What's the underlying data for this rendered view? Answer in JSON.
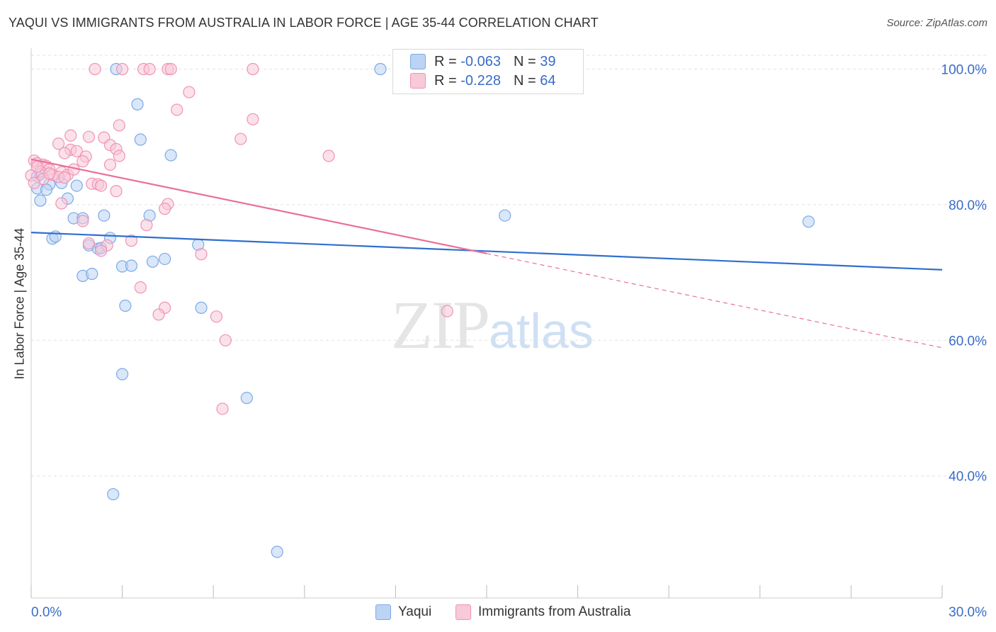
{
  "title": "YAQUI VS IMMIGRANTS FROM AUSTRALIA IN LABOR FORCE | AGE 35-44 CORRELATION CHART",
  "source": "Source: ZipAtlas.com",
  "legend": {
    "rows": [
      {
        "r_label": "R =",
        "r_value": "-0.063",
        "n_label": "N =",
        "n_value": "39"
      },
      {
        "r_label": "R =",
        "r_value": "-0.228",
        "n_label": "N =",
        "n_value": "64"
      }
    ]
  },
  "bottom_legend": {
    "series1": "Yaqui",
    "series2": "Immigrants from Australia"
  },
  "watermark": {
    "zip": "ZIP",
    "atlas": "atlas"
  },
  "colors": {
    "blue": "#7aaae8",
    "blue_fill": "#bcd3f3",
    "blue_line": "#2f6fcf",
    "pink": "#f093b4",
    "pink_fill": "#f8c9d8",
    "pink_line": "#e8709a",
    "grid": "#e2e2e2",
    "tick_label": "#3a6cc8"
  },
  "chart_data": {
    "type": "scatter",
    "title": "YAQUI VS IMMIGRANTS FROM AUSTRALIA IN LABOR FORCE | AGE 35-44 CORRELATION CHART",
    "xlabel": "",
    "ylabel": "In Labor Force | Age 35-44",
    "xlim": [
      0,
      30
    ],
    "ylim": [
      20,
      104
    ],
    "x_tick_labels": [
      {
        "value": 0,
        "label": "0.0%"
      },
      {
        "value": 30,
        "label": "30.0%"
      }
    ],
    "y_tick_labels": [
      {
        "value": 40,
        "label": "40.0%"
      },
      {
        "value": 60,
        "label": "60.0%"
      },
      {
        "value": 80,
        "label": "80.0%"
      },
      {
        "value": 100,
        "label": "100.0%"
      }
    ],
    "y_grid": [
      40,
      60,
      80,
      100
    ],
    "grid": true,
    "series": [
      {
        "name": "Yaqui",
        "color": "#7aaae8",
        "trend": {
          "x": [
            0,
            30
          ],
          "y": [
            75.9,
            70.4
          ]
        },
        "points": [
          [
            2.8,
            100
          ],
          [
            11.5,
            100
          ],
          [
            3.5,
            94.8
          ],
          [
            3.6,
            89.6
          ],
          [
            4.6,
            87.3
          ],
          [
            0.2,
            84.2
          ],
          [
            0.6,
            83.0
          ],
          [
            1.5,
            82.8
          ],
          [
            0.2,
            82.4
          ],
          [
            0.5,
            82.2
          ],
          [
            0.3,
            80.6
          ],
          [
            1.2,
            80.9
          ],
          [
            2.4,
            78.4
          ],
          [
            1.4,
            78.0
          ],
          [
            1.7,
            78.0
          ],
          [
            3.9,
            78.4
          ],
          [
            15.6,
            78.4
          ],
          [
            25.6,
            77.5
          ],
          [
            0.7,
            75.0
          ],
          [
            0.8,
            75.3
          ],
          [
            2.6,
            75.1
          ],
          [
            1.9,
            74.0
          ],
          [
            5.5,
            74.1
          ],
          [
            2.2,
            73.5
          ],
          [
            4.0,
            71.6
          ],
          [
            4.4,
            72.0
          ],
          [
            3.0,
            70.9
          ],
          [
            3.3,
            71.0
          ],
          [
            1.7,
            69.5
          ],
          [
            2.0,
            69.8
          ],
          [
            3.1,
            65.1
          ],
          [
            5.6,
            64.8
          ],
          [
            3.0,
            55.0
          ],
          [
            7.1,
            51.5
          ],
          [
            2.7,
            37.3
          ],
          [
            8.1,
            28.8
          ],
          [
            0.3,
            84.5
          ],
          [
            1.0,
            83.2
          ],
          [
            2.3,
            73.6
          ]
        ]
      },
      {
        "name": "Immigrants from Australia",
        "color": "#f093b4",
        "trend": {
          "x": [
            0,
            15
          ],
          "y": [
            86.7,
            72.8
          ]
        },
        "trend_dashed": {
          "x": [
            15,
            30
          ],
          "y": [
            72.8,
            58.9
          ]
        },
        "points": [
          [
            2.1,
            100
          ],
          [
            3.0,
            100
          ],
          [
            3.7,
            100
          ],
          [
            3.9,
            100
          ],
          [
            4.5,
            100
          ],
          [
            4.6,
            100
          ],
          [
            7.3,
            100
          ],
          [
            5.2,
            96.6
          ],
          [
            4.8,
            94.0
          ],
          [
            7.3,
            92.6
          ],
          [
            2.9,
            91.7
          ],
          [
            1.3,
            90.2
          ],
          [
            1.9,
            90.0
          ],
          [
            2.4,
            89.9
          ],
          [
            6.9,
            89.7
          ],
          [
            0.9,
            89.0
          ],
          [
            2.6,
            88.8
          ],
          [
            1.3,
            88.1
          ],
          [
            1.5,
            87.9
          ],
          [
            1.1,
            87.6
          ],
          [
            2.8,
            88.2
          ],
          [
            1.8,
            87.1
          ],
          [
            2.9,
            87.2
          ],
          [
            9.8,
            87.2
          ],
          [
            1.7,
            86.4
          ],
          [
            0.1,
            86.5
          ],
          [
            0.2,
            86.1
          ],
          [
            0.4,
            85.9
          ],
          [
            0.5,
            85.7
          ],
          [
            0.6,
            85.2
          ],
          [
            1.0,
            84.8
          ],
          [
            1.2,
            84.4
          ],
          [
            1.4,
            85.2
          ],
          [
            2.6,
            85.9
          ],
          [
            0.3,
            84.9
          ],
          [
            0.7,
            84.4
          ],
          [
            0.9,
            84.1
          ],
          [
            1.1,
            84.0
          ],
          [
            0.4,
            83.8
          ],
          [
            0.0,
            84.3
          ],
          [
            2.0,
            83.1
          ],
          [
            2.2,
            83.0
          ],
          [
            2.3,
            82.8
          ],
          [
            0.1,
            83.2
          ],
          [
            2.8,
            82.0
          ],
          [
            4.5,
            80.1
          ],
          [
            4.4,
            79.4
          ],
          [
            1.0,
            80.2
          ],
          [
            1.7,
            77.6
          ],
          [
            3.8,
            77.0
          ],
          [
            3.3,
            74.7
          ],
          [
            2.5,
            74.0
          ],
          [
            1.9,
            74.3
          ],
          [
            5.6,
            72.7
          ],
          [
            3.6,
            67.8
          ],
          [
            4.4,
            64.8
          ],
          [
            4.2,
            63.8
          ],
          [
            6.1,
            63.5
          ],
          [
            6.4,
            60.0
          ],
          [
            13.7,
            64.3
          ],
          [
            6.3,
            49.9
          ],
          [
            0.2,
            85.6
          ],
          [
            0.6,
            84.6
          ],
          [
            2.3,
            73.2
          ]
        ]
      }
    ],
    "stats": [
      {
        "series": "Yaqui",
        "R": -0.063,
        "N": 39
      },
      {
        "series": "Immigrants from Australia",
        "R": -0.228,
        "N": 64
      }
    ]
  }
}
